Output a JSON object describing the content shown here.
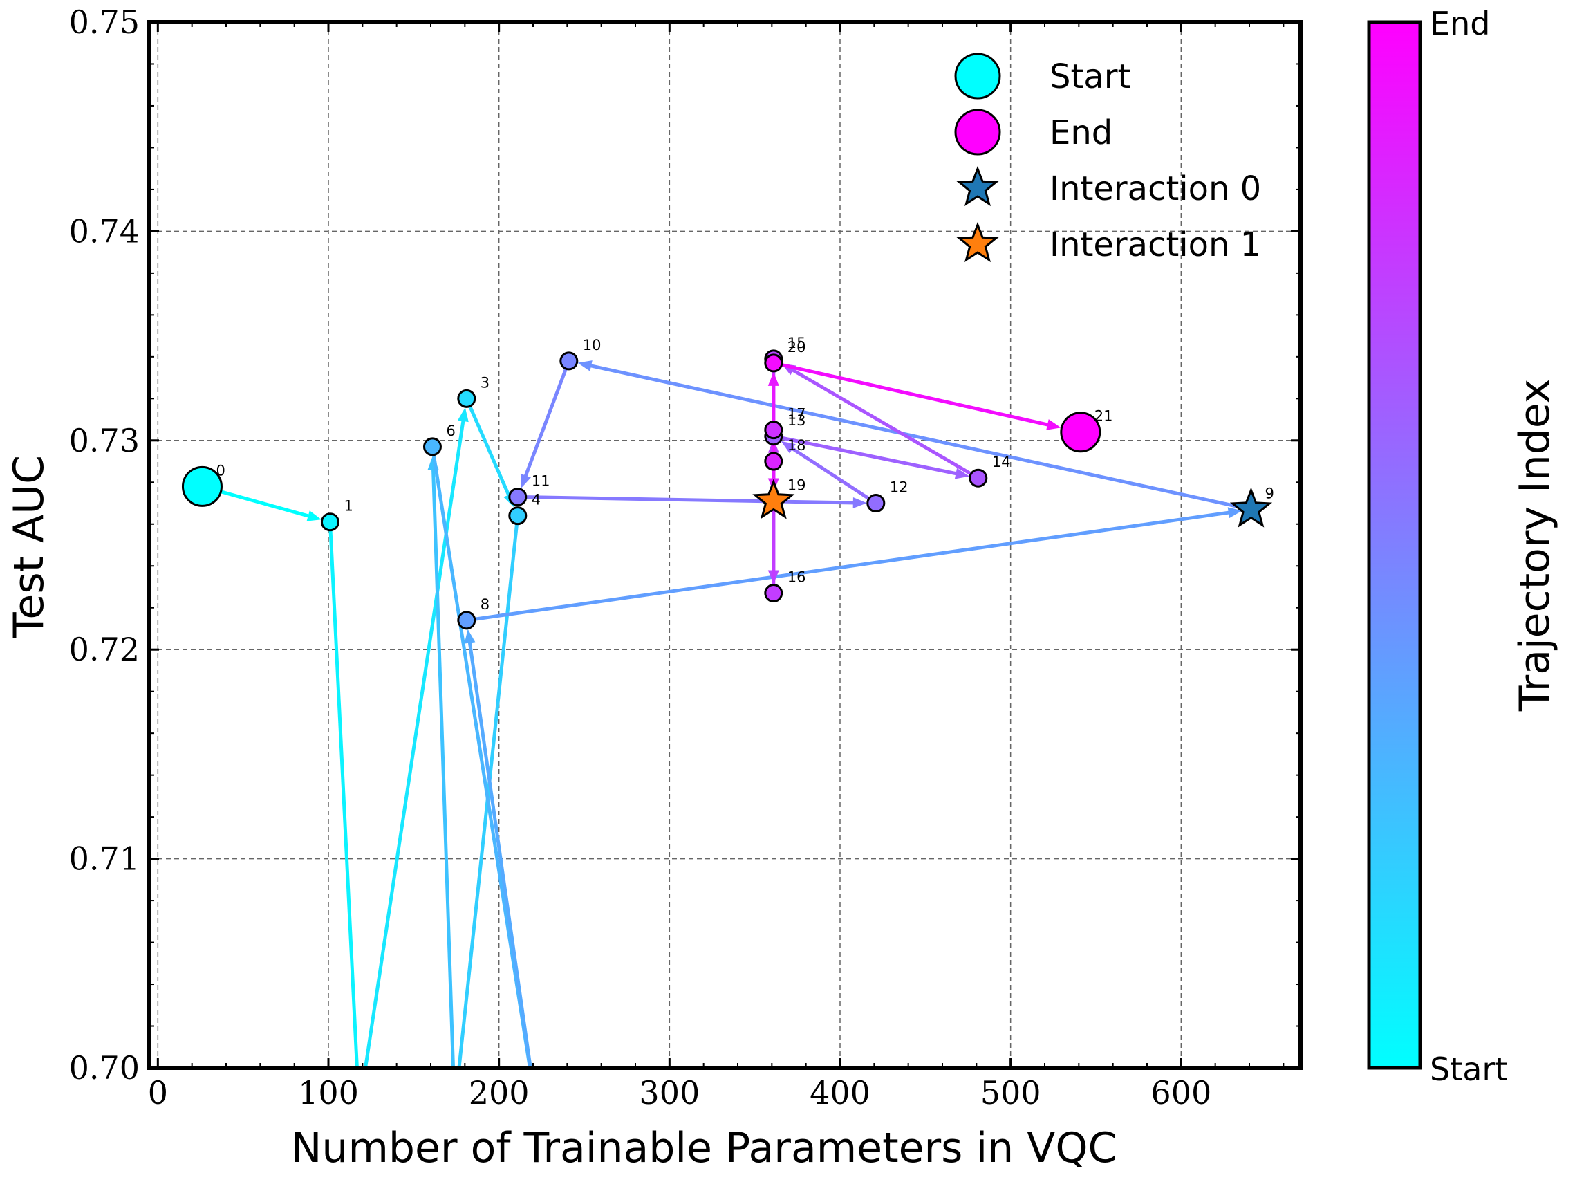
{
  "chart_data": {
    "type": "scatter",
    "subtype": "trajectory",
    "xlabel": "Number of Trainable Parameters in VQC",
    "ylabel": "Test AUC",
    "xlim": [
      -5,
      670
    ],
    "ylim": [
      0.7,
      0.75
    ],
    "xticks": [
      0,
      100,
      200,
      300,
      400,
      500,
      600
    ],
    "yticks": [
      0.7,
      0.71,
      0.72,
      0.73,
      0.74,
      0.75
    ],
    "grid": true,
    "legend_position": "top-right",
    "legend": [
      {
        "label": "Start",
        "marker": "circle",
        "color": "#00ffff"
      },
      {
        "label": "End",
        "marker": "circle",
        "color": "#ff00ff"
      },
      {
        "label": "Interaction 0",
        "marker": "star",
        "color": "#1f77b4"
      },
      {
        "label": "Interaction 1",
        "marker": "star",
        "color": "#ff7f0e"
      }
    ],
    "colorbar": {
      "label": "Trajectory Index",
      "min_label": "Start",
      "max_label": "End",
      "start_color": "#00ffff",
      "end_color": "#ff00ff"
    },
    "points": [
      {
        "index": 0,
        "label": "0",
        "x": 26,
        "y": 0.7278
      },
      {
        "index": 1,
        "label": "1",
        "x": 101,
        "y": 0.7261
      },
      {
        "index": 2,
        "label": "",
        "x": 118,
        "y": 0.698
      },
      {
        "index": 3,
        "label": "3",
        "x": 181,
        "y": 0.732
      },
      {
        "index": 4,
        "label": "4",
        "x": 211,
        "y": 0.7264
      },
      {
        "index": 5,
        "label": "",
        "x": 174,
        "y": 0.698
      },
      {
        "index": 6,
        "label": "6",
        "x": 161,
        "y": 0.7297
      },
      {
        "index": 7,
        "label": "",
        "x": 222,
        "y": 0.698
      },
      {
        "index": 8,
        "label": "8",
        "x": 181,
        "y": 0.7214
      },
      {
        "index": 9,
        "label": "9",
        "x": 641,
        "y": 0.7267
      },
      {
        "index": 10,
        "label": "10",
        "x": 241,
        "y": 0.7338
      },
      {
        "index": 11,
        "label": "11",
        "x": 211,
        "y": 0.7273
      },
      {
        "index": 12,
        "label": "12",
        "x": 421,
        "y": 0.727
      },
      {
        "index": 13,
        "label": "13",
        "x": 361,
        "y": 0.7302
      },
      {
        "index": 14,
        "label": "14",
        "x": 481,
        "y": 0.7282
      },
      {
        "index": 15,
        "label": "15",
        "x": 361,
        "y": 0.7339
      },
      {
        "index": 16,
        "label": "16",
        "x": 361,
        "y": 0.7227
      },
      {
        "index": 17,
        "label": "17",
        "x": 361,
        "y": 0.7305
      },
      {
        "index": 18,
        "label": "18",
        "x": 361,
        "y": 0.729
      },
      {
        "index": 19,
        "label": "19",
        "x": 361,
        "y": 0.7271
      },
      {
        "index": 20,
        "label": "20",
        "x": 361,
        "y": 0.7337
      },
      {
        "index": 21,
        "label": "21",
        "x": 541,
        "y": 0.7304
      }
    ],
    "special_markers": {
      "start": 0,
      "end": 21,
      "interaction_0": 9,
      "interaction_1": 19
    }
  }
}
